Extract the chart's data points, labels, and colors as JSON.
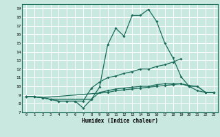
{
  "title": "",
  "xlabel": "Humidex (Indice chaleur)",
  "bg_color": "#c8e8e0",
  "grid_color": "#ffffff",
  "line_color": "#1a6b5a",
  "xlim": [
    -0.5,
    23.5
  ],
  "ylim": [
    7,
    19.5
  ],
  "xticks": [
    0,
    1,
    2,
    3,
    4,
    5,
    6,
    7,
    8,
    9,
    10,
    11,
    12,
    13,
    14,
    15,
    16,
    17,
    18,
    19,
    20,
    21,
    22,
    23
  ],
  "yticks": [
    7,
    8,
    9,
    10,
    11,
    12,
    13,
    14,
    15,
    16,
    17,
    18,
    19
  ],
  "line1_x": [
    0,
    1,
    2,
    3,
    8,
    9,
    10,
    11,
    12,
    13,
    14,
    15,
    16,
    17,
    18,
    19,
    20,
    21,
    22,
    23
  ],
  "line1_y": [
    8.8,
    8.8,
    8.7,
    8.5,
    8.5,
    9.9,
    14.8,
    16.7,
    15.8,
    18.2,
    18.2,
    18.9,
    17.5,
    15.0,
    13.3,
    11.1,
    10.0,
    9.5,
    9.3,
    9.3
  ],
  "line2_x": [
    0,
    1,
    2,
    3,
    4,
    5,
    6,
    7,
    8,
    9,
    10,
    11,
    12,
    13,
    14,
    15,
    16,
    17,
    18,
    19
  ],
  "line2_y": [
    8.8,
    8.8,
    8.7,
    8.5,
    8.3,
    8.3,
    8.3,
    8.3,
    9.8,
    10.5,
    11.0,
    11.2,
    11.5,
    11.7,
    12.0,
    12.0,
    12.3,
    12.5,
    12.8,
    13.2
  ],
  "line3_x": [
    0,
    1,
    2,
    10,
    11,
    12,
    13,
    14,
    15,
    16,
    17,
    18,
    19,
    20,
    21,
    22,
    23
  ],
  "line3_y": [
    8.8,
    8.8,
    8.7,
    9.3,
    9.5,
    9.6,
    9.7,
    9.8,
    9.9,
    10.0,
    10.1,
    10.2,
    10.3,
    10.0,
    10.0,
    9.3,
    9.3
  ],
  "line4_x": [
    0,
    1,
    2,
    3,
    4,
    5,
    6,
    7,
    8,
    9,
    10,
    11,
    12,
    13,
    14,
    15,
    16,
    17,
    18,
    19,
    20,
    21,
    22,
    23
  ],
  "line4_y": [
    8.8,
    8.8,
    8.7,
    8.5,
    8.3,
    8.3,
    8.3,
    7.5,
    8.5,
    9.3,
    9.5,
    9.7,
    9.8,
    9.9,
    10.0,
    10.0,
    10.2,
    10.3,
    10.3,
    10.3,
    10.1,
    10.0,
    9.3,
    9.3
  ]
}
